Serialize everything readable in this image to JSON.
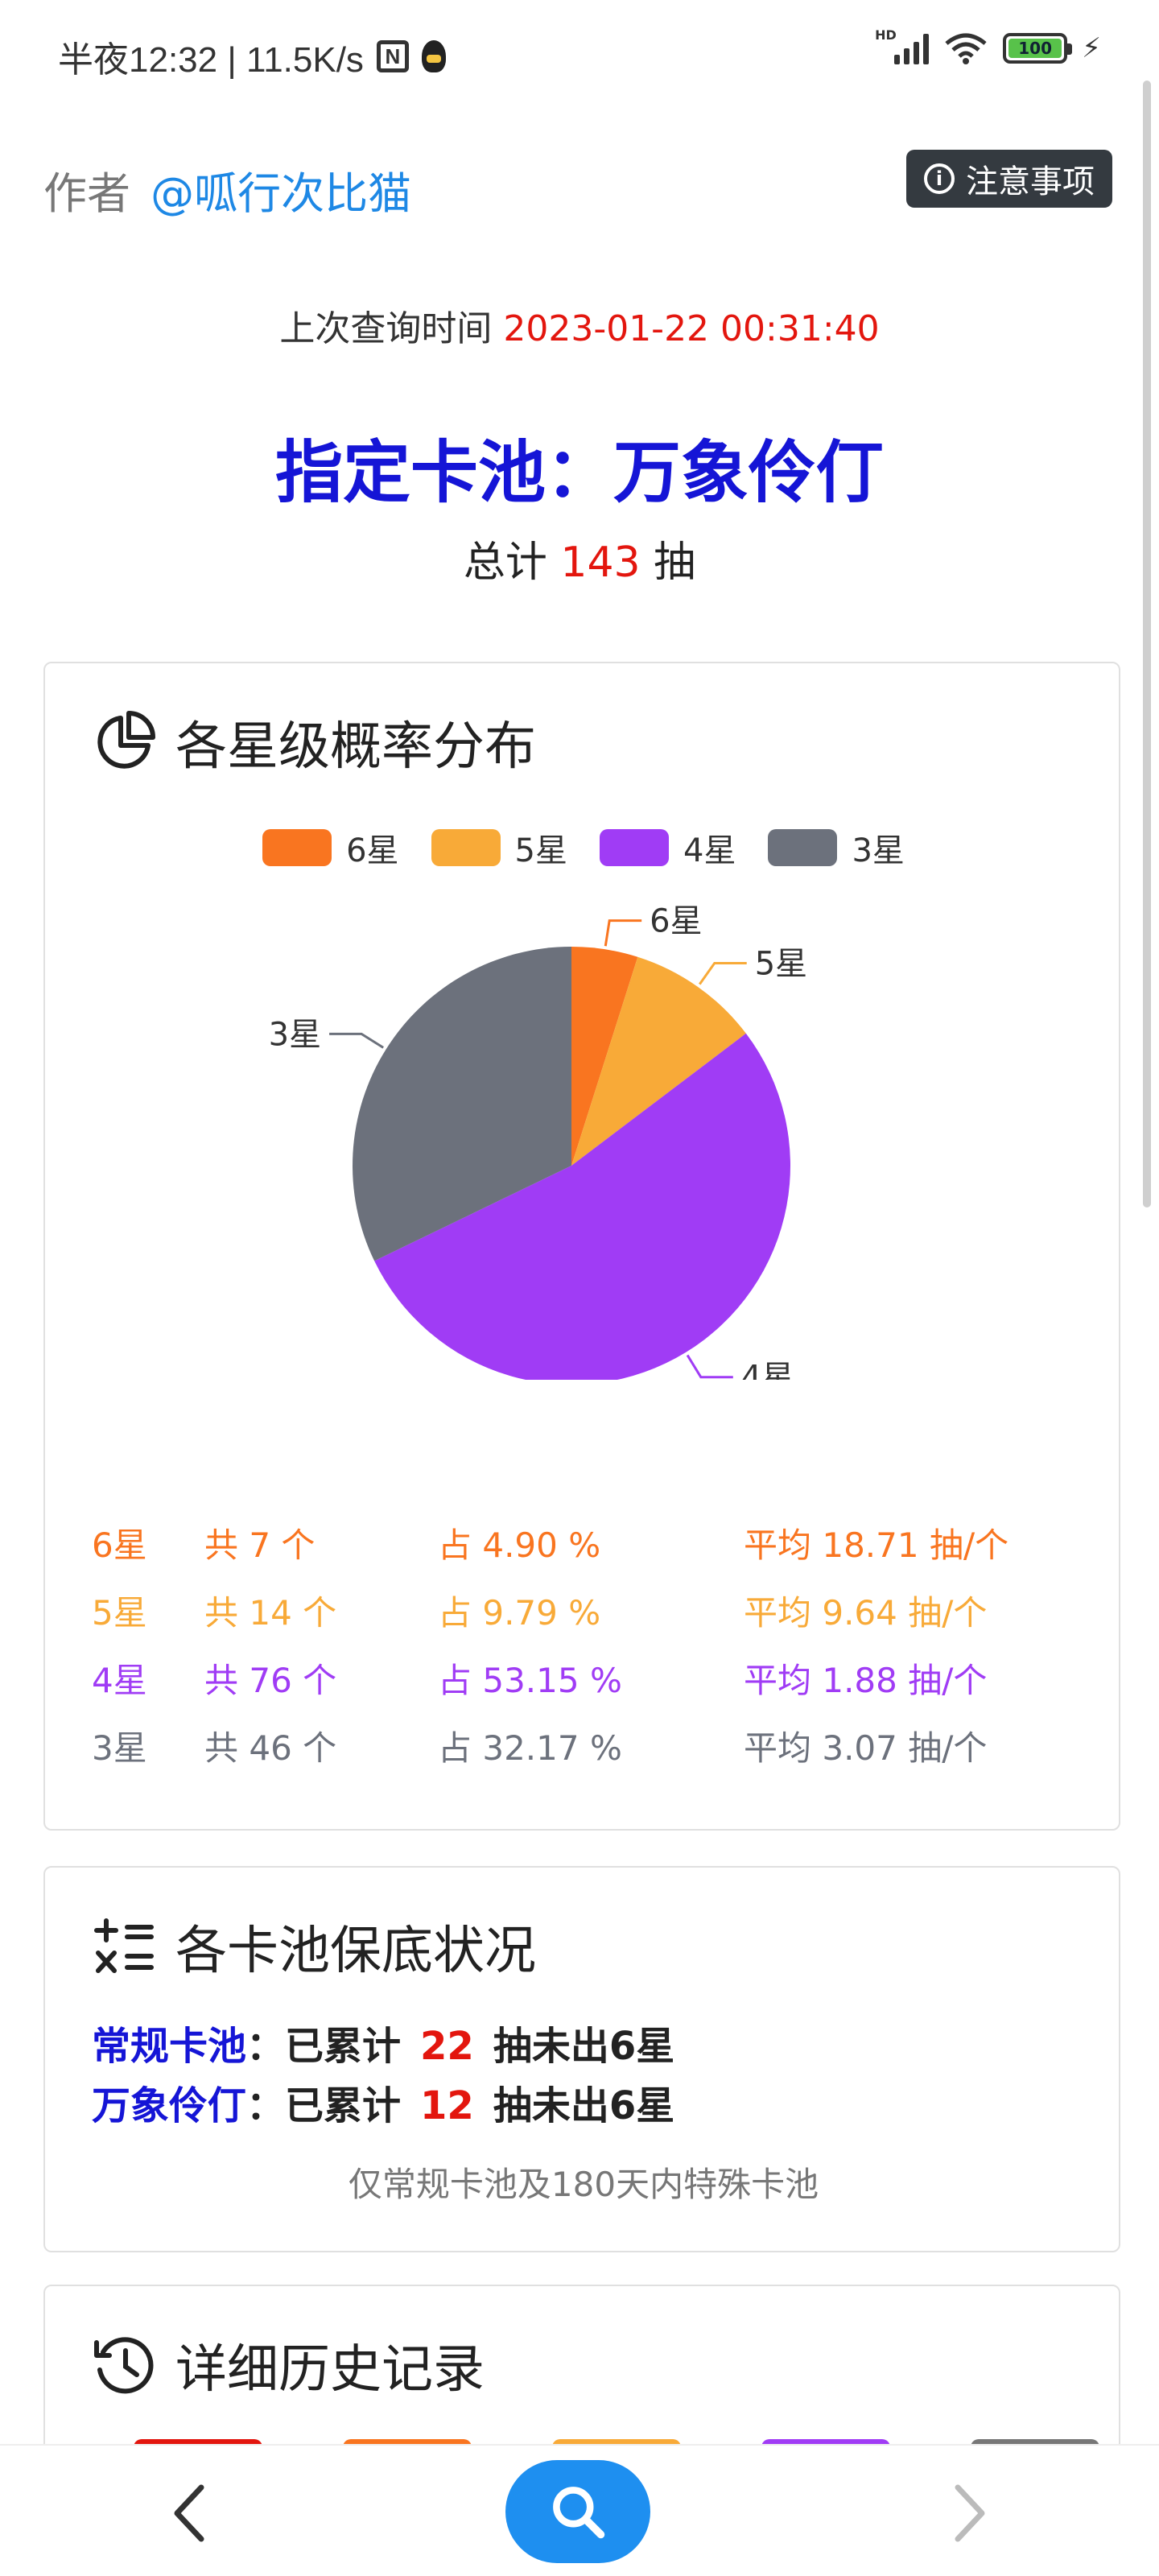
{
  "status_bar": {
    "time_speed": "半夜12:32 | 11.5K/s",
    "nfc": "N",
    "network": "HD",
    "battery": "100"
  },
  "header": {
    "author_label": "作者",
    "author_handle": "@呱行次比猫",
    "notice_button": "注意事项"
  },
  "query": {
    "label": "上次查询时间",
    "time": "2023-01-22 00:31:40"
  },
  "pool": {
    "title": "指定卡池：万象伶仃",
    "total_prefix": "总计",
    "total_count": "143",
    "total_suffix": "抽"
  },
  "distribution_card": {
    "title": "各星级概率分布",
    "icon": "pie-chart-icon"
  },
  "chart_data": {
    "type": "pie",
    "title": "",
    "legend_position": "top-center",
    "slices": [
      {
        "label": "6星",
        "count": 7,
        "percent": 4.9,
        "color": "#f97520"
      },
      {
        "label": "5星",
        "count": 14,
        "percent": 9.79,
        "color": "#f8aa38"
      },
      {
        "label": "4星",
        "count": 76,
        "percent": 53.15,
        "color": "#a03cf5"
      },
      {
        "label": "3星",
        "count": 46,
        "percent": 32.17,
        "color": "#6c717c"
      }
    ]
  },
  "stats": [
    {
      "star": "6星",
      "count": "共 7 个",
      "pct": "占 4.90 %",
      "avg": "平均 18.71 抽/个",
      "color": "#f97520"
    },
    {
      "star": "5星",
      "count": "共 14 个",
      "pct": "占 9.79 %",
      "avg": "平均 9.64 抽/个",
      "color": "#f8aa38"
    },
    {
      "star": "4星",
      "count": "共 76 个",
      "pct": "占 53.15 %",
      "avg": "平均 1.88 抽/个",
      "color": "#a03cf5"
    },
    {
      "star": "3星",
      "count": "共 46 个",
      "pct": "占 32.17 %",
      "avg": "平均 3.07 抽/个",
      "color": "#6c717c"
    }
  ],
  "guarantee_card": {
    "title": "各卡池保底状况",
    "icon": "calculator-icon",
    "rows": [
      {
        "pool": "常规卡池",
        "prefix": "：已累计",
        "count": "22",
        "suffix": "抽未出6星"
      },
      {
        "pool": "万象伶仃",
        "prefix": "：已累计",
        "count": "12",
        "suffix": "抽未出6星"
      }
    ],
    "note": "仅常规卡池及180天内特殊卡池"
  },
  "history_card": {
    "title": "详细历史记录",
    "icon": "history-icon",
    "chip_colors": [
      "#e3160e",
      "#f97520",
      "#f8aa38",
      "#a03cf5",
      "#777777"
    ]
  },
  "bottom_nav": {
    "back": "chevron-left-icon",
    "search": "search-icon",
    "forward": "chevron-right-icon"
  }
}
